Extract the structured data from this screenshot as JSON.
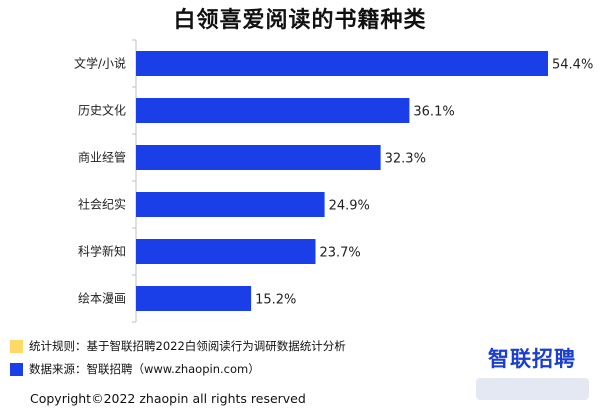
{
  "title": "白领喜爱阅读的书籍种类",
  "notes": [
    {
      "text": "统计规则：基于智联招聘2022白领阅读行为调研数据统计分析",
      "color": "#ffd966"
    },
    {
      "text": "数据来源：智联招聘（www.zhaopin.com）",
      "color": "#1a3ee8"
    }
  ],
  "logo_text": "智联招聘",
  "copyright": "Copyright©2022 zhaopin all rights reserved",
  "chart_data": {
    "type": "bar",
    "orientation": "horizontal",
    "title": "白领喜爱阅读的书籍种类",
    "categories": [
      "文学/小说",
      "历史文化",
      "商业经管",
      "社会纪实",
      "科学新知",
      "绘本漫画"
    ],
    "values": [
      54.4,
      36.1,
      32.3,
      24.9,
      23.7,
      15.2
    ],
    "value_labels": [
      "54.4%",
      "36.1%",
      "32.3%",
      "24.9%",
      "23.7%",
      "15.2%"
    ],
    "unit": "%",
    "xlim": [
      0,
      54.4
    ],
    "bar_color": "#1a3ee8",
    "grid": false
  }
}
